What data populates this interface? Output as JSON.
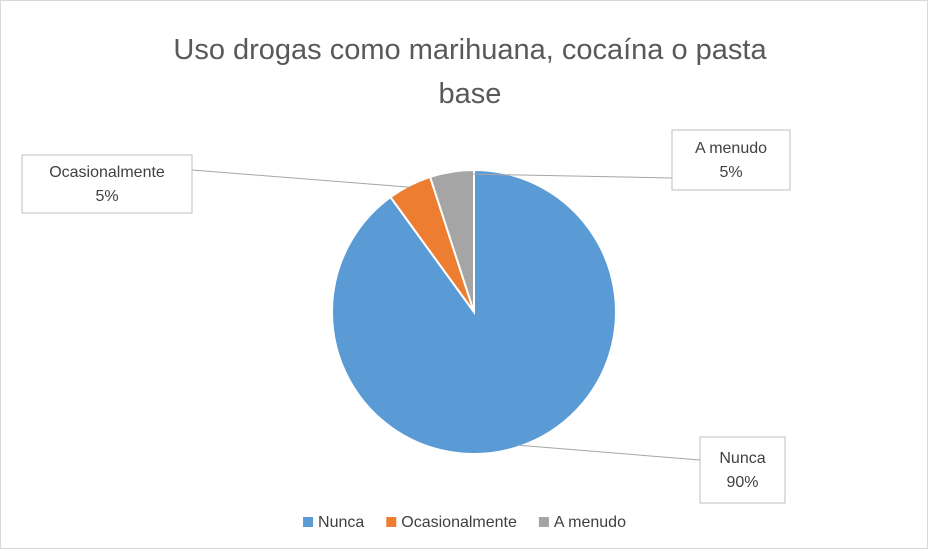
{
  "chart_data": {
    "type": "pie",
    "title": "Uso drogas como marihuana, cocaína o pasta base",
    "categories": [
      "Nunca",
      "Ocasionalmente",
      "A menudo"
    ],
    "values": [
      90,
      5,
      5
    ],
    "value_labels": [
      "90%",
      "5%",
      "5%"
    ],
    "colors": [
      "#5b9bd5",
      "#ed7d31",
      "#a5a5a5"
    ],
    "legend": "bottom"
  }
}
